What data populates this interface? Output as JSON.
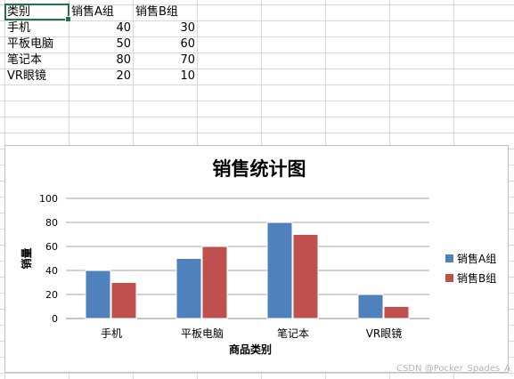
{
  "sheet": {
    "columns": [
      "类别",
      "销售A组",
      "销售B组"
    ],
    "rows": [
      [
        "手机",
        "40",
        "30"
      ],
      [
        "平板电脑",
        "50",
        "60"
      ],
      [
        "笔记本",
        "80",
        "70"
      ],
      [
        "VR眼镜",
        "20",
        "10"
      ]
    ]
  },
  "chart_data": {
    "type": "bar",
    "title": "销售统计图",
    "xlabel": "商品类别",
    "ylabel": "销量",
    "categories": [
      "手机",
      "平板电脑",
      "笔记本",
      "VR眼镜"
    ],
    "series": [
      {
        "name": "销售A组",
        "values": [
          40,
          50,
          80,
          20
        ],
        "color": "#4f81bd"
      },
      {
        "name": "销售B组",
        "values": [
          30,
          60,
          70,
          10
        ],
        "color": "#c0504d"
      }
    ],
    "ylim": [
      0,
      100
    ],
    "yticks": [
      0,
      20,
      40,
      60,
      80,
      100
    ],
    "grid": true,
    "legend": "right"
  },
  "watermark": "CSDN @Pocker_Spades_A"
}
